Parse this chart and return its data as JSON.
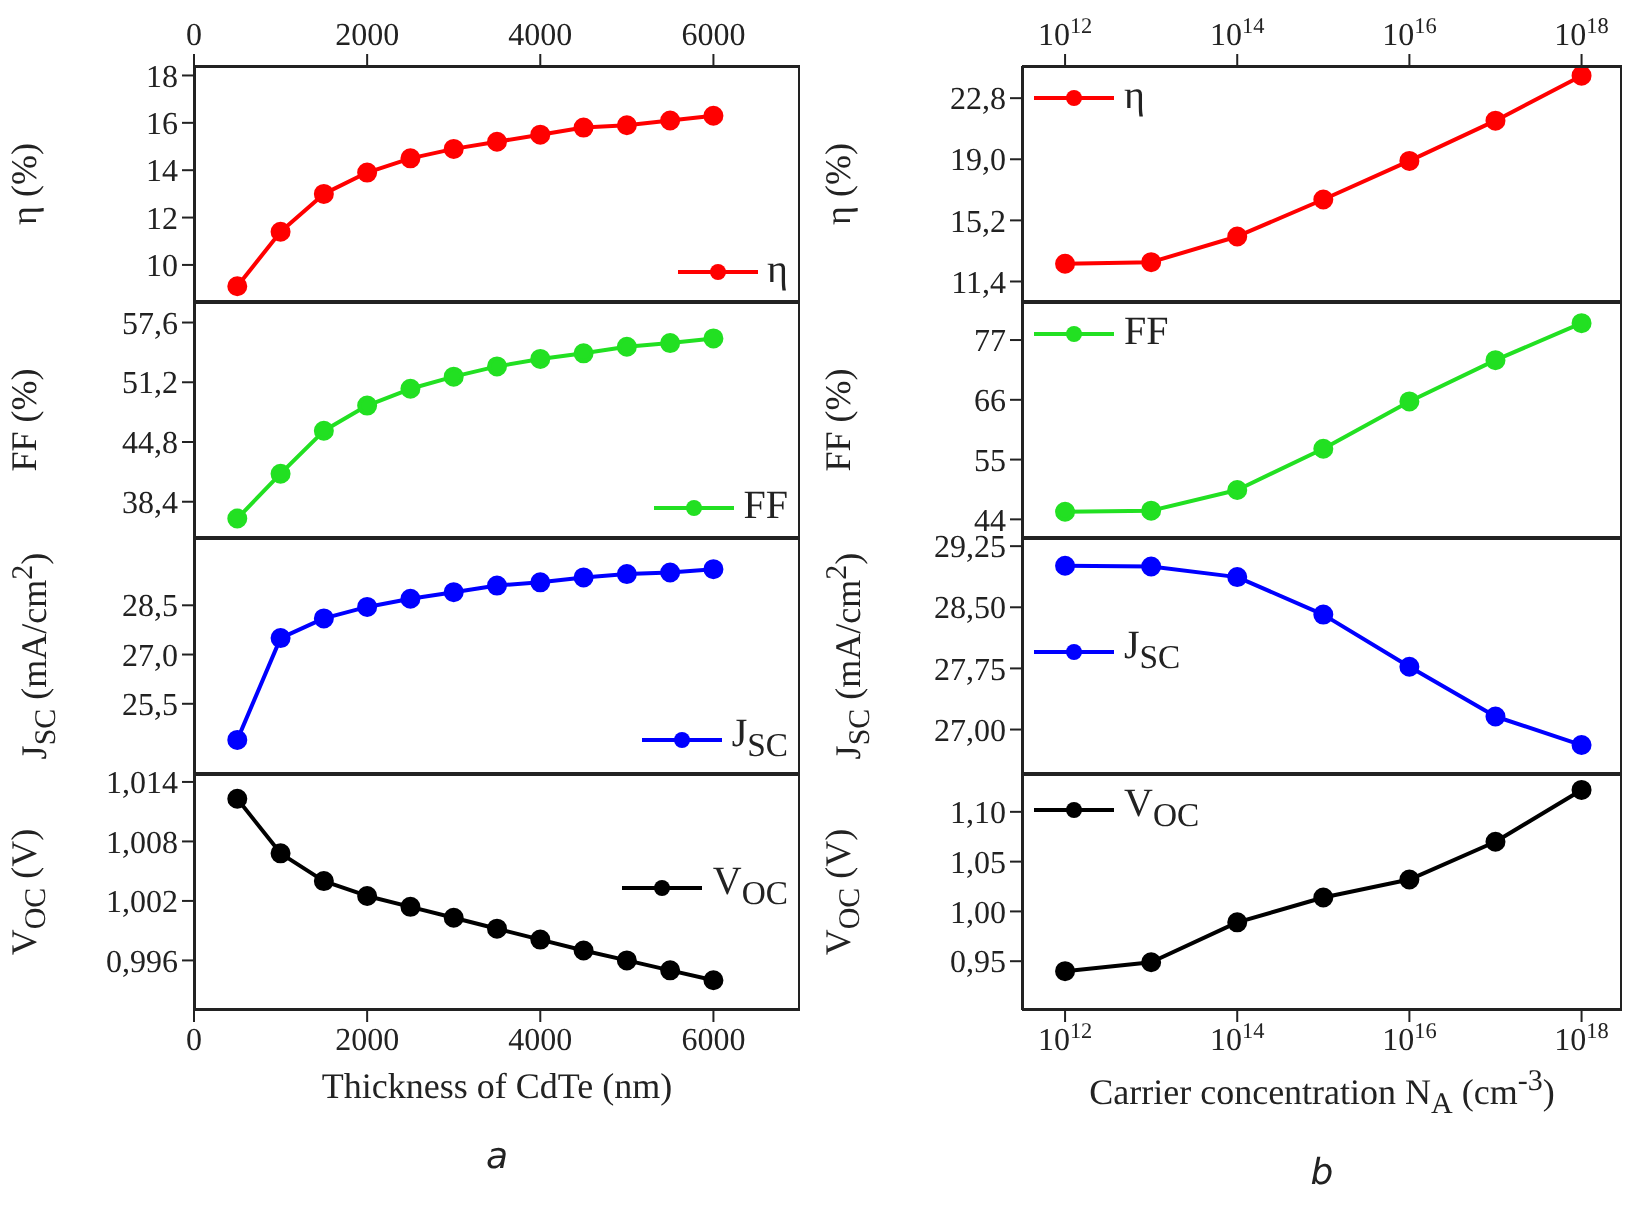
{
  "chart_data": [
    {
      "type": "line",
      "ylabel": "η (%)",
      "x": [
        500,
        1000,
        1500,
        2000,
        2500,
        3000,
        3500,
        4000,
        4500,
        5000,
        5500,
        6000
      ],
      "xlim": [
        0,
        7000
      ],
      "xticks": [
        0,
        2000,
        4000,
        6000
      ],
      "ylim": [
        8.35,
        18.4
      ],
      "yticks": [
        10,
        12,
        14,
        16,
        18
      ],
      "legend": "bottom right",
      "marker": "circle",
      "series": [
        {
          "name": "η",
          "color": "#ff0000",
          "values": [
            9.1,
            11.4,
            13.0,
            13.9,
            14.5,
            14.9,
            15.2,
            15.5,
            15.8,
            15.9,
            16.1,
            16.3
          ]
        }
      ]
    },
    {
      "type": "line",
      "ylabel": "FF (%)",
      "x": [
        500,
        1000,
        1500,
        2000,
        2500,
        3000,
        3500,
        4000,
        4500,
        5000,
        5500,
        6000
      ],
      "xlim": [
        0,
        7000
      ],
      "ylim": [
        34.3,
        59.8
      ],
      "yticks": [
        {
          "value": 38.4,
          "label": "38,4"
        },
        {
          "value": 44.8,
          "label": "44,8"
        },
        {
          "value": 51.2,
          "label": "51,2"
        },
        {
          "value": 57.6,
          "label": "57,6"
        }
      ],
      "tick_labels": "y",
      "legend": "bottom right",
      "marker": "circle",
      "series": [
        {
          "name": "FF",
          "color": "#22e022",
          "values": [
            36.6,
            41.4,
            46.0,
            48.7,
            50.5,
            51.8,
            52.9,
            53.7,
            54.3,
            55.0,
            55.4,
            55.9
          ]
        }
      ]
    },
    {
      "type": "line",
      "ylabel": "J$_{SC}$ (mA/cm$^{2}$)",
      "x": [
        500,
        1000,
        1500,
        2000,
        2500,
        3000,
        3500,
        4000,
        4500,
        5000,
        5500,
        6000
      ],
      "xlim": [
        0,
        7000
      ],
      "ylim": [
        23.3,
        30.55
      ],
      "yticks": [
        {
          "value": 25.5,
          "label": "25,5"
        },
        {
          "value": 27,
          "label": "27,0"
        },
        {
          "value": 28.5,
          "label": "28,5"
        }
      ],
      "tick_labels": "y",
      "legend": "bottom right",
      "marker": "circle",
      "series": [
        {
          "name": "J$_{SC}$",
          "color": "#0000ff",
          "values": [
            24.4,
            27.5,
            28.1,
            28.45,
            28.7,
            28.9,
            29.1,
            29.2,
            29.35,
            29.45,
            29.5,
            29.6
          ]
        }
      ]
    },
    {
      "type": "line",
      "ylabel": "V$_{OC}$ (V)",
      "xlabel": "Thickness of CdTe (nm)",
      "annotations": [
        "a"
      ],
      "x": [
        500,
        1000,
        1500,
        2000,
        2500,
        3000,
        3500,
        4000,
        4500,
        5000,
        5500,
        6000
      ],
      "xlim": [
        0,
        7000
      ],
      "xticks": [
        0,
        2000,
        4000,
        6000
      ],
      "ylim": [
        0.991,
        1.0148
      ],
      "yticks": [
        {
          "value": 0.996,
          "label": "0,996"
        },
        {
          "value": 1.002,
          "label": "1,002"
        },
        {
          "value": 1.008,
          "label": "1,008"
        },
        {
          "value": 1.014,
          "label": "1,014"
        }
      ],
      "legend": "right",
      "marker": "circle",
      "series": [
        {
          "name": "V$_{OC}$",
          "color": "#000000",
          "values": [
            1.0123,
            1.0068,
            1.004,
            1.0025,
            1.0014,
            1.0003,
            0.9992,
            0.9981,
            0.997,
            0.996,
            0.995,
            0.994
          ]
        }
      ]
    },
    {
      "type": "line",
      "ylabel": "η (%)",
      "log": "x",
      "x": [
        1000000000000.0,
        10000000000000.0,
        100000000000000.0,
        1000000000000000.0,
        1e+16,
        1e+17,
        1e+18
      ],
      "xlim": [
        316000000000.0,
        2.95e+18
      ],
      "xticks": [
        {
          "value": 1000000000000.0,
          "label": "10$^{12}$"
        },
        {
          "value": 100000000000000.0,
          "label": "10$^{14}$"
        },
        {
          "value": 1e+16,
          "label": "10$^{16}$"
        },
        {
          "value": 1e+18,
          "label": "10$^{18}$"
        }
      ],
      "ylim": [
        10.0,
        24.8
      ],
      "yticks": [
        {
          "value": 11.4,
          "label": "11,4"
        },
        {
          "value": 15.2,
          "label": "15,2"
        },
        {
          "value": 19,
          "label": "19,0"
        },
        {
          "value": 22.8,
          "label": "22,8"
        }
      ],
      "legend": "top left",
      "marker": "circle",
      "series": [
        {
          "name": "η",
          "color": "#ff0000",
          "values": [
            12.5,
            12.6,
            14.2,
            16.5,
            18.9,
            21.4,
            24.2
          ]
        }
      ]
    },
    {
      "type": "line",
      "ylabel": "FF (%)",
      "log": "x",
      "x": [
        1000000000000.0,
        10000000000000.0,
        100000000000000.0,
        1000000000000000.0,
        1e+16,
        1e+17,
        1e+18
      ],
      "xlim": [
        316000000000.0,
        2.95e+18
      ],
      "ylim": [
        40.2,
        84
      ],
      "yticks": [
        44,
        55,
        66,
        77
      ],
      "tick_labels": "y",
      "legend": "top left",
      "marker": "circle",
      "series": [
        {
          "name": "FF",
          "color": "#22e022",
          "values": [
            45.4,
            45.6,
            49.4,
            57.0,
            65.7,
            73.3,
            80.1
          ]
        }
      ]
    },
    {
      "type": "line",
      "ylabel": "J$_{SC}$ (mA/cm$^{2}$)",
      "log": "x",
      "x": [
        1000000000000.0,
        10000000000000.0,
        100000000000000.0,
        1000000000000000.0,
        1e+16,
        1e+17,
        1e+18
      ],
      "xlim": [
        316000000000.0,
        2.95e+18
      ],
      "ylim": [
        26.43,
        29.35
      ],
      "yticks": [
        {
          "value": 27,
          "label": "27,00"
        },
        {
          "value": 27.75,
          "label": "27,75"
        },
        {
          "value": 28.5,
          "label": "28,50"
        },
        {
          "value": 29.25,
          "label": "29,25"
        }
      ],
      "tick_labels": "y",
      "legend": "left",
      "marker": "circle",
      "series": [
        {
          "name": "J$_{SC}$",
          "color": "#0000ff",
          "values": [
            29.01,
            29.0,
            28.87,
            28.41,
            27.77,
            27.16,
            26.81
          ]
        }
      ]
    },
    {
      "type": "line",
      "ylabel": "V$_{OC}$ (V)",
      "xlabel": "Carrier concentration N$_{A}$ (cm$^{-3}$)",
      "annotations": [
        "b"
      ],
      "log": "x",
      "x": [
        1000000000000.0,
        10000000000000.0,
        100000000000000.0,
        1000000000000000.0,
        1e+16,
        1e+17,
        1e+18
      ],
      "xlim": [
        316000000000.0,
        2.95e+18
      ],
      "xticks": [
        {
          "value": 1000000000000.0,
          "label": "10$^{12}$"
        },
        {
          "value": 100000000000000.0,
          "label": "10$^{14}$"
        },
        {
          "value": 1e+16,
          "label": "10$^{16}$"
        },
        {
          "value": 1e+18,
          "label": "10$^{18}$"
        }
      ],
      "ylim": [
        0.901,
        1.138
      ],
      "yticks": [
        {
          "value": 0.95,
          "label": "0,95"
        },
        {
          "value": 1,
          "label": "1,00"
        },
        {
          "value": 1.05,
          "label": "1,05"
        },
        {
          "value": 1.1,
          "label": "1,10"
        }
      ],
      "legend": "top left",
      "marker": "circle",
      "series": [
        {
          "name": "V$_{OC}$",
          "color": "#000000",
          "values": [
            0.94,
            0.949,
            0.989,
            1.014,
            1.032,
            1.07,
            1.122
          ]
        }
      ]
    }
  ]
}
